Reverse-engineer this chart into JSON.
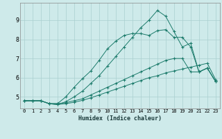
{
  "title": "",
  "xlabel": "Humidex (Indice chaleur)",
  "bg_color": "#ceeaea",
  "grid_color": "#aacfcf",
  "line_color": "#1a7a6a",
  "xlim": [
    -0.5,
    23.5
  ],
  "ylim": [
    4.4,
    9.9
  ],
  "yticks": [
    5,
    6,
    7,
    8,
    9
  ],
  "xticks": [
    0,
    1,
    2,
    3,
    4,
    5,
    6,
    7,
    8,
    9,
    10,
    11,
    12,
    13,
    14,
    15,
    16,
    17,
    18,
    19,
    20,
    21,
    22,
    23
  ],
  "line1_x": [
    0,
    1,
    2,
    3,
    4,
    5,
    6,
    7,
    8,
    9,
    10,
    11,
    12,
    13,
    14,
    15,
    16,
    17,
    18,
    19,
    20,
    21,
    22,
    23
  ],
  "line1_y": [
    4.8,
    4.8,
    4.8,
    4.65,
    4.65,
    5.0,
    5.5,
    5.95,
    6.35,
    6.9,
    7.5,
    7.9,
    8.2,
    8.3,
    8.3,
    8.2,
    8.45,
    8.5,
    8.1,
    8.1,
    7.6,
    6.3,
    6.5,
    5.8
  ],
  "line2_x": [
    0,
    1,
    2,
    3,
    4,
    5,
    6,
    7,
    8,
    9,
    10,
    11,
    12,
    13,
    14,
    15,
    16,
    17,
    18,
    19,
    20,
    21,
    22,
    23
  ],
  "line2_y": [
    4.8,
    4.8,
    4.8,
    4.65,
    4.6,
    4.75,
    5.0,
    5.3,
    5.7,
    6.1,
    6.6,
    7.1,
    7.6,
    8.1,
    8.6,
    9.0,
    9.5,
    9.2,
    8.4,
    7.6,
    7.8,
    6.3,
    6.5,
    5.8
  ],
  "line3_x": [
    0,
    1,
    2,
    3,
    4,
    5,
    6,
    7,
    8,
    9,
    10,
    11,
    12,
    13,
    14,
    15,
    16,
    17,
    18,
    19,
    20,
    21,
    22,
    23
  ],
  "line3_y": [
    4.8,
    4.8,
    4.8,
    4.65,
    4.65,
    4.7,
    4.8,
    4.9,
    5.1,
    5.3,
    5.5,
    5.7,
    5.9,
    6.1,
    6.3,
    6.5,
    6.7,
    6.9,
    7.0,
    7.0,
    6.3,
    6.3,
    6.5,
    5.8
  ],
  "line4_x": [
    0,
    1,
    2,
    3,
    4,
    5,
    6,
    7,
    8,
    9,
    10,
    11,
    12,
    13,
    14,
    15,
    16,
    17,
    18,
    19,
    20,
    21,
    22,
    23
  ],
  "line4_y": [
    4.8,
    4.8,
    4.8,
    4.65,
    4.6,
    4.65,
    4.72,
    4.82,
    4.95,
    5.1,
    5.25,
    5.4,
    5.55,
    5.7,
    5.85,
    6.0,
    6.1,
    6.25,
    6.35,
    6.45,
    6.55,
    6.65,
    6.75,
    5.9
  ]
}
